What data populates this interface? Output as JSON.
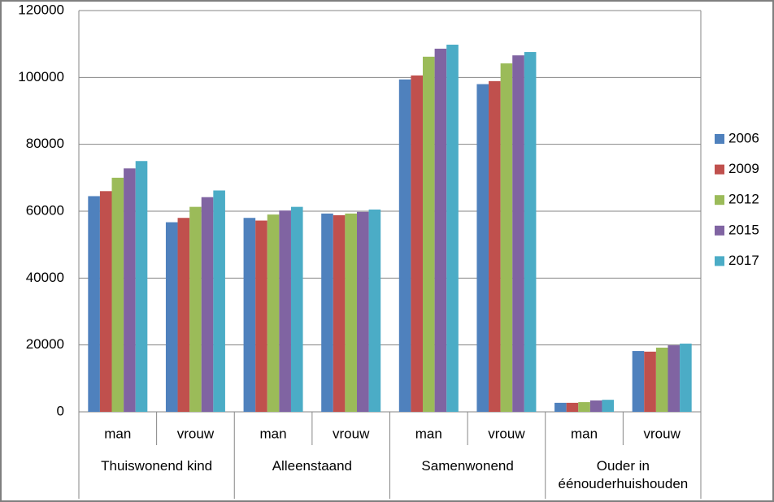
{
  "chart_data": {
    "type": "bar",
    "category_groups": [
      {
        "name": "Thuiswonend kind",
        "categories": [
          "man",
          "vrouw"
        ]
      },
      {
        "name": "Alleenstaand",
        "categories": [
          "man",
          "vrouw"
        ]
      },
      {
        "name": "Samenwonend",
        "categories": [
          "man",
          "vrouw"
        ]
      },
      {
        "name": "Ouder in éénouderhuishouden",
        "categories": [
          "man",
          "vrouw"
        ]
      }
    ],
    "series": [
      {
        "name": "2006",
        "color": "#4f81bd",
        "values": [
          64500,
          56700,
          58000,
          59300,
          99400,
          98000,
          2700,
          18200
        ]
      },
      {
        "name": "2009",
        "color": "#c0504d",
        "values": [
          66000,
          58000,
          57200,
          58800,
          100600,
          98900,
          2700,
          18000
        ]
      },
      {
        "name": "2012",
        "color": "#9bbb59",
        "values": [
          70000,
          61300,
          59000,
          59300,
          106200,
          104200,
          2900,
          19200
        ]
      },
      {
        "name": "2015",
        "color": "#8064a2",
        "values": [
          72800,
          64200,
          60200,
          59800,
          108600,
          106600,
          3400,
          19900
        ]
      },
      {
        "name": "2017",
        "color": "#4bacc6",
        "values": [
          75000,
          66200,
          61300,
          60500,
          109800,
          107600,
          3600,
          20400
        ]
      }
    ],
    "ylim": [
      0,
      120000
    ],
    "yticks": [
      0,
      20000,
      40000,
      60000,
      80000,
      100000,
      120000
    ],
    "grid": true,
    "legend": "right"
  }
}
